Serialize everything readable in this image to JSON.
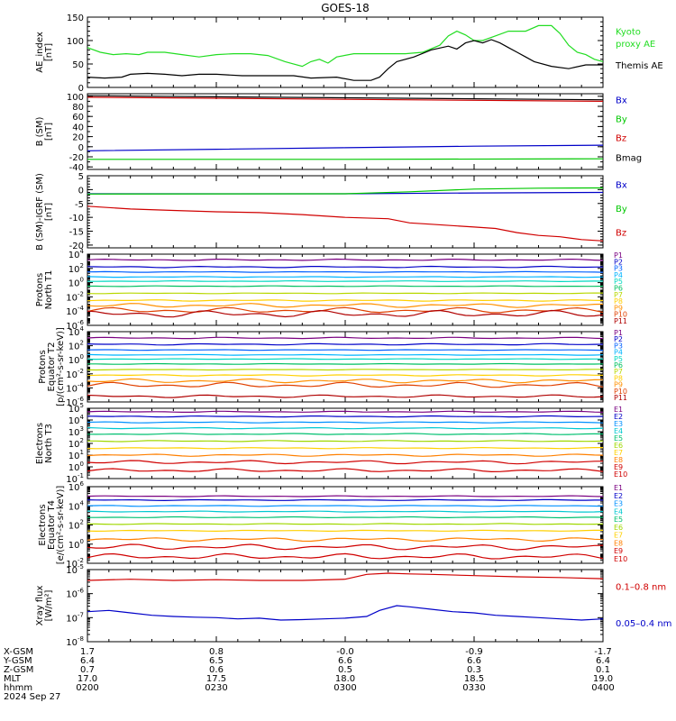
{
  "title": "GOES-18",
  "colors": {
    "p_channels": [
      "#000000",
      "#7a0080",
      "#0000c8",
      "#0060ff",
      "#00b4ff",
      "#00d8c0",
      "#00c060",
      "#b8d800",
      "#ffd000",
      "#ff9000",
      "#e04000",
      "#b00000"
    ],
    "e_channels": [
      "#000000",
      "#7a0080",
      "#0000c8",
      "#0090ff",
      "#00c8d0",
      "#00c070",
      "#a0d800",
      "#ffd000",
      "#ff8000",
      "#d00000"
    ],
    "bx": "#0000c8",
    "by": "#00c800",
    "bz": "#d00000",
    "bmag": "#000000",
    "kyoto": "#22dd22",
    "themis": "#000000"
  },
  "footer": {
    "row_labels": [
      "X-GSM",
      "Y-GSM",
      "Z-GSM",
      "MLT",
      "hhmm"
    ],
    "columns": [
      {
        "values": [
          "1.7",
          "6.4",
          "0.7",
          "17.0",
          "0200"
        ]
      },
      {
        "values": [
          "0.8",
          "6.5",
          "0.6",
          "17.5",
          "0230"
        ]
      },
      {
        "values": [
          "-0.0",
          "6.6",
          "0.5",
          "18.0",
          "0300"
        ]
      },
      {
        "values": [
          "-0.9",
          "6.6",
          "0.3",
          "18.5",
          "0330"
        ]
      },
      {
        "values": [
          "-1.7",
          "6.4",
          "0.1",
          "19.0",
          "0400"
        ]
      }
    ],
    "date": "2024 Sep 27"
  },
  "chart_data": [
    {
      "type": "line",
      "panel": "ae",
      "ylabel": [
        "AE_index",
        "[nT]"
      ],
      "ylim": [
        0,
        150
      ],
      "scale": "linear",
      "ticks": [
        {
          "v": 0,
          "label": "0"
        },
        {
          "v": 50,
          "label": "50"
        },
        {
          "v": 100,
          "label": "100"
        },
        {
          "v": 150,
          "label": "150"
        }
      ],
      "minor_step": 10,
      "legend": [
        {
          "text": "Kyoto",
          "color_key": "kyoto",
          "ypos": 0.2
        },
        {
          "text": "proxy AE",
          "color_key": "kyoto",
          "ypos": 0.37
        },
        {
          "text": "Themis AE",
          "color_key": "themis",
          "ypos": 0.68
        }
      ],
      "series": [
        {
          "name": "Kyoto proxy AE",
          "color_key": "kyoto",
          "x": [
            0,
            3,
            6,
            9,
            12,
            14,
            18,
            22,
            26,
            30,
            34,
            38,
            42,
            46,
            50,
            52,
            54,
            56,
            58,
            62,
            66,
            70,
            74,
            78,
            82,
            84,
            86,
            88,
            90,
            92,
            95,
            98,
            102,
            105,
            108,
            110,
            112,
            114,
            116,
            118,
            120
          ],
          "y": [
            85,
            75,
            70,
            72,
            70,
            75,
            75,
            70,
            65,
            70,
            72,
            72,
            68,
            55,
            45,
            55,
            60,
            52,
            65,
            72,
            72,
            72,
            72,
            75,
            90,
            110,
            120,
            112,
            100,
            100,
            110,
            120,
            120,
            132,
            132,
            115,
            90,
            75,
            70,
            60,
            55
          ]
        },
        {
          "name": "Themis AE",
          "color_key": "themis",
          "x": [
            0,
            4,
            8,
            10,
            14,
            18,
            22,
            26,
            30,
            36,
            42,
            48,
            52,
            58,
            62,
            66,
            68,
            70,
            72,
            76,
            80,
            84,
            86,
            88,
            90,
            92,
            94,
            96,
            98,
            100,
            102,
            104,
            108,
            112,
            116,
            120
          ],
          "y": [
            22,
            20,
            22,
            28,
            30,
            28,
            25,
            28,
            28,
            25,
            25,
            25,
            20,
            22,
            15,
            15,
            22,
            40,
            55,
            65,
            80,
            88,
            82,
            95,
            100,
            95,
            102,
            95,
            85,
            75,
            65,
            55,
            45,
            40,
            48,
            48
          ]
        }
      ]
    },
    {
      "type": "line",
      "panel": "bsm",
      "ylabel": [
        "B (SM)",
        "[nT]"
      ],
      "ylim": [
        -45,
        105
      ],
      "scale": "linear",
      "ticks": [
        {
          "v": -40,
          "label": "-40"
        },
        {
          "v": -20,
          "label": "-20"
        },
        {
          "v": 0,
          "label": "0"
        },
        {
          "v": 20,
          "label": "20"
        },
        {
          "v": 40,
          "label": "40"
        },
        {
          "v": 60,
          "label": "60"
        },
        {
          "v": 80,
          "label": "80"
        },
        {
          "v": 100,
          "label": "100"
        }
      ],
      "minor_step": 10,
      "legend": [
        {
          "text": "Bx",
          "color_key": "bx",
          "ypos": 0.08
        },
        {
          "text": "By",
          "color_key": "by",
          "ypos": 0.33
        },
        {
          "text": "Bz",
          "color_key": "bz",
          "ypos": 0.58
        },
        {
          "text": "Bmag",
          "color_key": "bmag",
          "ypos": 0.84
        }
      ],
      "series": [
        {
          "name": "Bx",
          "color_key": "bx",
          "x": [
            0,
            30,
            60,
            90,
            120
          ],
          "y": [
            -8,
            -5,
            -2,
            1,
            3
          ]
        },
        {
          "name": "By",
          "color_key": "by",
          "x": [
            0,
            60,
            120
          ],
          "y": [
            -25,
            -25,
            -24
          ]
        },
        {
          "name": "Bz",
          "color_key": "bz",
          "x": [
            0,
            30,
            60,
            90,
            120
          ],
          "y": [
            98,
            96,
            94,
            92,
            90
          ]
        },
        {
          "name": "Bmag",
          "color_key": "bmag",
          "x": [
            0,
            30,
            60,
            90,
            120
          ],
          "y": [
            101,
            99,
            97,
            95,
            93
          ]
        }
      ]
    },
    {
      "type": "line",
      "panel": "bigrf",
      "ylabel": [
        "B (SM)-IGRF (SM)",
        "[nT]"
      ],
      "ylim": [
        -21,
        5
      ],
      "scale": "linear",
      "ticks": [
        {
          "v": -20,
          "label": "-20"
        },
        {
          "v": -15,
          "label": "-15"
        },
        {
          "v": -10,
          "label": "-10"
        },
        {
          "v": -5,
          "label": "-5"
        },
        {
          "v": 0,
          "label": "0"
        },
        {
          "v": 5,
          "label": "5"
        }
      ],
      "minor_step": 1,
      "legend": [
        {
          "text": "Bx",
          "color_key": "bx",
          "ypos": 0.12
        },
        {
          "text": "By",
          "color_key": "by",
          "ypos": 0.45
        },
        {
          "text": "Bz",
          "color_key": "bz",
          "ypos": 0.78
        }
      ],
      "series": [
        {
          "name": "Bx",
          "color_key": "bx",
          "x": [
            0,
            60,
            90,
            120
          ],
          "y": [
            -1.5,
            -1.5,
            -1.2,
            -1.0
          ]
        },
        {
          "name": "By",
          "color_key": "by",
          "x": [
            0,
            60,
            75,
            90,
            105,
            120
          ],
          "y": [
            -1.6,
            -1.5,
            -0.8,
            0.2,
            0.5,
            0.6
          ]
        },
        {
          "name": "Bz",
          "color_key": "bz",
          "x": [
            0,
            10,
            20,
            30,
            40,
            50,
            60,
            70,
            75,
            80,
            90,
            95,
            100,
            105,
            110,
            115,
            120
          ],
          "y": [
            -6,
            -7,
            -7.5,
            -8,
            -8.3,
            -9,
            -10,
            -10.5,
            -12,
            -12.5,
            -13.5,
            -14,
            -15.5,
            -16.5,
            -17,
            -18,
            -18.5
          ]
        }
      ]
    },
    {
      "type": "line",
      "panel": "pnorth",
      "scale": "log",
      "ylabel": [
        "Protons",
        "North T1"
      ],
      "ylim": [
        -6,
        4
      ],
      "ticks": [
        {
          "v": -6,
          "label": "10-6"
        },
        {
          "v": -4,
          "label": "10-4"
        },
        {
          "v": -2,
          "label": "10-2"
        },
        {
          "v": 0,
          "label": "100"
        },
        {
          "v": 2,
          "label": "102"
        },
        {
          "v": 4,
          "label": "104"
        }
      ],
      "channels": [
        "P1",
        "P2",
        "P3",
        "P4",
        "P5",
        "P6",
        "P7",
        "P8",
        "P9",
        "P10",
        "P11"
      ],
      "levels": [
        3.2,
        2.2,
        1.5,
        0.8,
        0.2,
        -0.5,
        -1.5,
        -2.5,
        -3.2,
        -3.9,
        -4.4
      ],
      "wiggle": [
        0.1,
        0.1,
        0.05,
        0.05,
        0.05,
        0.05,
        0.05,
        0.1,
        0.3,
        0.4,
        0.5
      ]
    },
    {
      "type": "line",
      "panel": "peq",
      "scale": "log",
      "ylabel": [
        "Protons",
        "Equator T2",
        "[p/(cm²-s-sr-keV)]"
      ],
      "ylim": [
        -6,
        4
      ],
      "ticks": [
        {
          "v": -6,
          "label": "10-6"
        },
        {
          "v": -4,
          "label": "10-4"
        },
        {
          "v": -2,
          "label": "10-2"
        },
        {
          "v": 0,
          "label": "100"
        },
        {
          "v": 2,
          "label": "102"
        },
        {
          "v": 4,
          "label": "104"
        }
      ],
      "channels": [
        "P1",
        "P2",
        "P3",
        "P4",
        "P5",
        "P6",
        "P7",
        "P8",
        "P9",
        "P10",
        "P11"
      ],
      "levels": [
        3.1,
        2.2,
        1.4,
        0.7,
        0.1,
        -0.6,
        -1.4,
        -2.2,
        -3.0,
        -3.6,
        -5.2
      ],
      "wiggle": [
        0.1,
        0.1,
        0.05,
        0.05,
        0.05,
        0.05,
        0.05,
        0.1,
        0.3,
        0.4,
        0.2
      ]
    },
    {
      "type": "line",
      "panel": "enorth",
      "scale": "log",
      "ylabel": [
        "Electrons",
        "North T3"
      ],
      "ylim": [
        -1,
        5
      ],
      "ticks": [
        {
          "v": -1,
          "label": "10-1"
        },
        {
          "v": 0,
          "label": "100"
        },
        {
          "v": 1,
          "label": "101"
        },
        {
          "v": 2,
          "label": "102"
        },
        {
          "v": 3,
          "label": "103"
        },
        {
          "v": 4,
          "label": "104"
        },
        {
          "v": 5,
          "label": "105"
        }
      ],
      "channels": [
        "E1",
        "E2",
        "E3",
        "E4",
        "E5",
        "E6",
        "E7",
        "E8",
        "E9",
        "E10"
      ],
      "levels": [
        4.7,
        4.3,
        3.8,
        3.3,
        2.8,
        2.2,
        1.6,
        1.0,
        0.4,
        -0.3
      ],
      "wiggle": [
        0.05,
        0.05,
        0.05,
        0.05,
        0.05,
        0.05,
        0.05,
        0.1,
        0.15,
        0.15
      ]
    },
    {
      "type": "line",
      "panel": "eeq",
      "scale": "log",
      "ylabel": [
        "Electrons",
        "Equator T4",
        "[e/(cm²-s-sr-keV)]"
      ],
      "ylim": [
        -2,
        6
      ],
      "ticks": [
        {
          "v": -2,
          "label": "10-2"
        },
        {
          "v": 0,
          "label": "100"
        },
        {
          "v": 2,
          "label": "102"
        },
        {
          "v": 4,
          "label": "104"
        },
        {
          "v": 6,
          "label": "106"
        }
      ],
      "channels": [
        "E1",
        "E2",
        "E3",
        "E4",
        "E5",
        "E6",
        "E7",
        "E8",
        "E9",
        "E10"
      ],
      "levels": [
        5.0,
        4.6,
        4.0,
        3.4,
        2.8,
        2.1,
        1.4,
        0.5,
        -0.3,
        -1.3
      ],
      "wiggle": [
        0.05,
        0.05,
        0.05,
        0.05,
        0.05,
        0.05,
        0.05,
        0.2,
        0.3,
        0.3
      ]
    },
    {
      "type": "line",
      "panel": "xray",
      "scale": "log",
      "ylabel": [
        "Xray flux",
        "[W/m²]"
      ],
      "ylim": [
        -8,
        -5
      ],
      "ticks": [
        {
          "v": -8,
          "label": "10-8"
        },
        {
          "v": -7,
          "label": "10-7"
        },
        {
          "v": -6,
          "label": "10-6"
        },
        {
          "v": -5,
          "label": "10-5"
        }
      ],
      "legend": [
        {
          "text": "0.1–0.8 nm",
          "color_key": "bz",
          "ypos": 0.23
        },
        {
          "text": "0.05–0.4 nm",
          "color_key": "bx",
          "ypos": 0.74
        }
      ],
      "series": [
        {
          "name": "0.1–0.8 nm",
          "color_key": "bz",
          "x": [
            0,
            10,
            20,
            30,
            40,
            50,
            60,
            65,
            70,
            75,
            80,
            90,
            100,
            110,
            120
          ],
          "y": [
            -5.45,
            -5.4,
            -5.45,
            -5.42,
            -5.45,
            -5.45,
            -5.4,
            -5.2,
            -5.15,
            -5.18,
            -5.2,
            -5.25,
            -5.3,
            -5.33,
            -5.38
          ]
        },
        {
          "name": "0.05–0.4 nm",
          "color_key": "bx",
          "x": [
            0,
            5,
            10,
            15,
            20,
            25,
            30,
            35,
            40,
            45,
            50,
            55,
            60,
            65,
            68,
            72,
            75,
            80,
            85,
            90,
            95,
            100,
            105,
            110,
            115,
            120
          ],
          "y": [
            -6.75,
            -6.7,
            -6.8,
            -6.9,
            -6.95,
            -6.98,
            -7.0,
            -7.05,
            -7.02,
            -7.1,
            -7.08,
            -7.05,
            -7.02,
            -6.95,
            -6.7,
            -6.5,
            -6.55,
            -6.65,
            -6.75,
            -6.8,
            -6.9,
            -6.95,
            -7.0,
            -7.05,
            -7.1,
            -7.05
          ]
        }
      ]
    }
  ]
}
